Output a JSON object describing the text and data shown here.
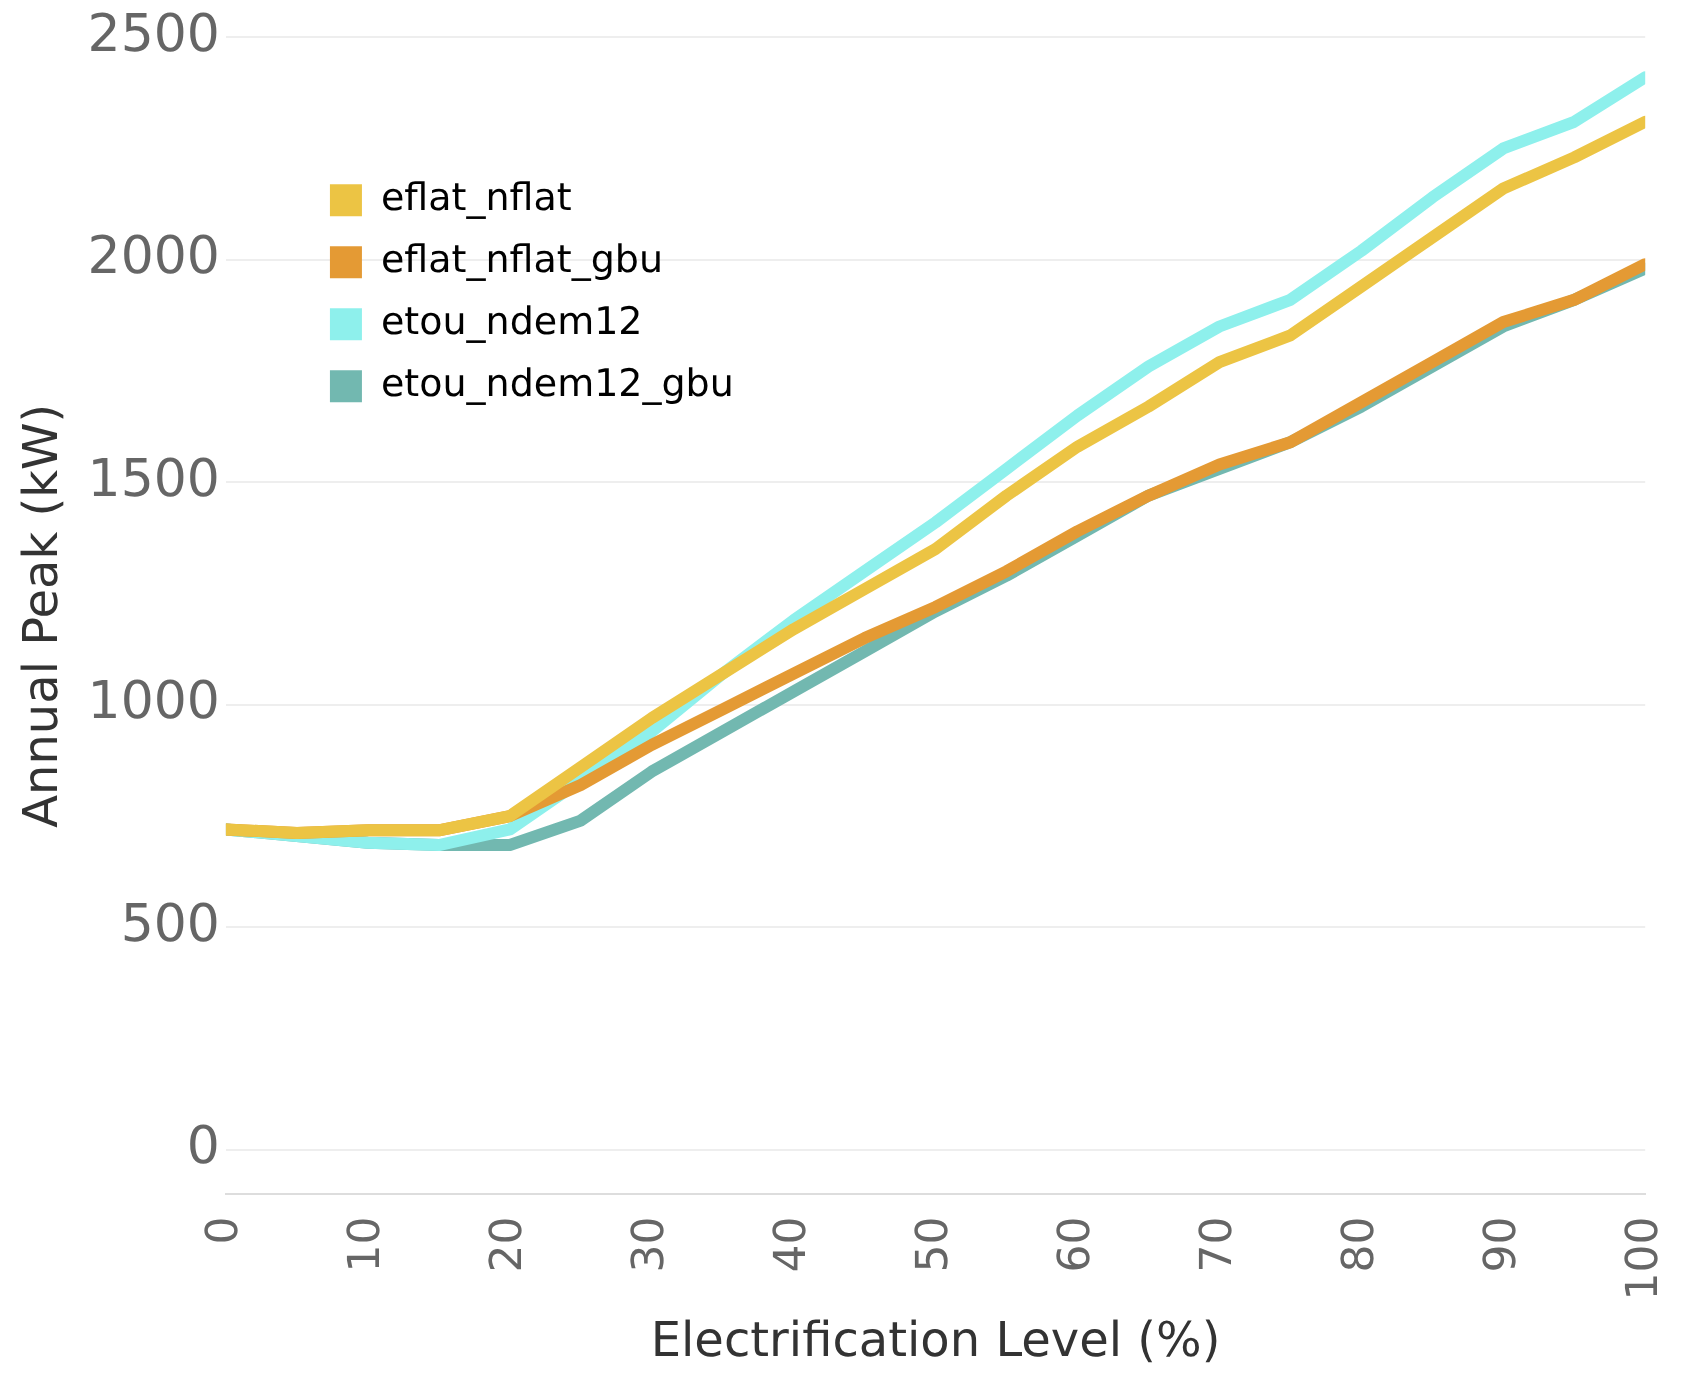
{
  "chart_data": {
    "type": "line",
    "xlabel": "Electrification Level (%)",
    "ylabel": "Annual Peak (kW)",
    "x": [
      0,
      5,
      10,
      15,
      20,
      25,
      30,
      35,
      40,
      45,
      50,
      55,
      60,
      65,
      70,
      75,
      80,
      85,
      90,
      95,
      100
    ],
    "xlim": [
      0,
      100
    ],
    "xticks": [
      0,
      10,
      20,
      30,
      40,
      50,
      60,
      70,
      80,
      90,
      100
    ],
    "ylim": [
      -100,
      2500
    ],
    "yticks": [
      0,
      500,
      1000,
      1500,
      2000,
      2500
    ],
    "grid": "y",
    "legend": "top left",
    "marker": "none",
    "line_style": "solid",
    "series": [
      {
        "name": "eflat_nflat",
        "color": "#ecc444",
        "values": [
          720,
          712,
          718,
          718,
          750,
          860,
          970,
          1070,
          1170,
          1260,
          1350,
          1470,
          1580,
          1670,
          1770,
          1830,
          1940,
          2050,
          2160,
          2230,
          2310
        ]
      },
      {
        "name": "eflat_nflat_gbu",
        "color": "#e49a34",
        "values": [
          720,
          712,
          718,
          718,
          750,
          820,
          910,
          990,
          1070,
          1150,
          1220,
          1300,
          1390,
          1470,
          1540,
          1590,
          1680,
          1770,
          1860,
          1910,
          1990
        ]
      },
      {
        "name": "etou_ndem12",
        "color": "#8ef0ec",
        "values": [
          720,
          705,
          690,
          685,
          720,
          830,
          940,
          1070,
          1190,
          1300,
          1410,
          1530,
          1650,
          1760,
          1850,
          1910,
          2020,
          2140,
          2250,
          2310,
          2410
        ]
      },
      {
        "name": "etou_ndem12_gbu",
        "color": "#72b8b0",
        "values": [
          720,
          705,
          690,
          685,
          685,
          740,
          850,
          940,
          1030,
          1120,
          1210,
          1290,
          1380,
          1470,
          1530,
          1590,
          1670,
          1760,
          1850,
          1910,
          1980
        ]
      }
    ]
  }
}
